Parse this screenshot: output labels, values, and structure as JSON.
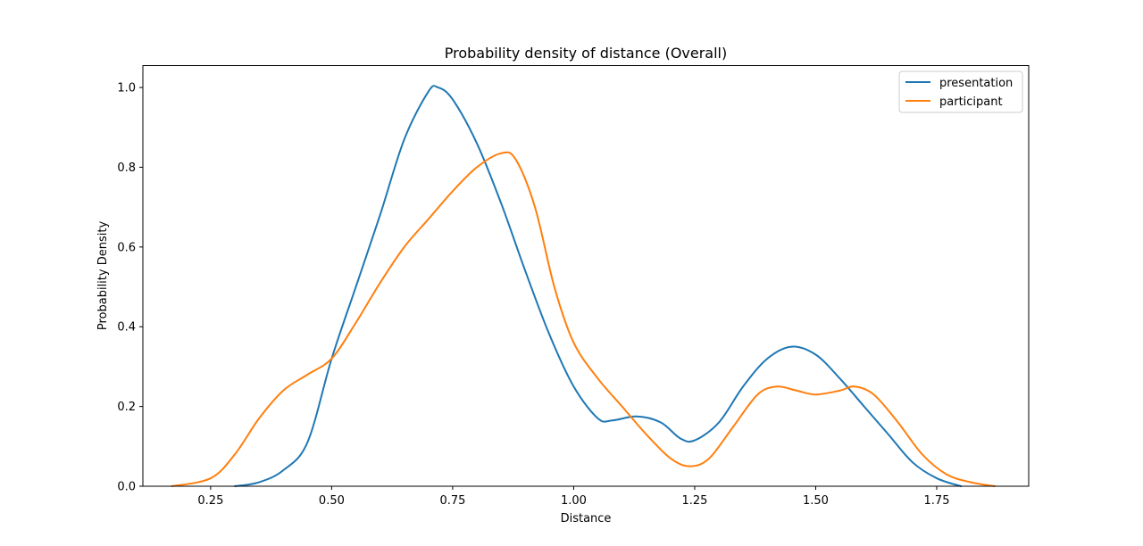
{
  "chart_data": {
    "type": "line",
    "title": "Probability density of distance (Overall)",
    "xlabel": "Distance",
    "ylabel": "Probability Density",
    "xlim": [
      0.11,
      1.94
    ],
    "ylim": [
      0.0,
      1.055
    ],
    "xticks": [
      "0.25",
      "0.50",
      "0.75",
      "1.00",
      "1.25",
      "1.50",
      "1.75"
    ],
    "yticks": [
      "0.0",
      "0.2",
      "0.4",
      "0.6",
      "0.8",
      "1.0"
    ],
    "grid": false,
    "legend_position": "top-right",
    "series": [
      {
        "name": "presentation",
        "color": "#1f77b4",
        "points": [
          [
            0.3,
            0.0
          ],
          [
            0.35,
            0.01
          ],
          [
            0.4,
            0.04
          ],
          [
            0.45,
            0.11
          ],
          [
            0.5,
            0.32
          ],
          [
            0.55,
            0.5
          ],
          [
            0.6,
            0.68
          ],
          [
            0.65,
            0.87
          ],
          [
            0.7,
            0.99
          ],
          [
            0.72,
            1.0
          ],
          [
            0.75,
            0.97
          ],
          [
            0.8,
            0.86
          ],
          [
            0.85,
            0.71
          ],
          [
            0.9,
            0.54
          ],
          [
            0.95,
            0.38
          ],
          [
            1.0,
            0.25
          ],
          [
            1.05,
            0.17
          ],
          [
            1.08,
            0.165
          ],
          [
            1.13,
            0.175
          ],
          [
            1.18,
            0.16
          ],
          [
            1.22,
            0.12
          ],
          [
            1.25,
            0.115
          ],
          [
            1.3,
            0.16
          ],
          [
            1.35,
            0.25
          ],
          [
            1.4,
            0.32
          ],
          [
            1.45,
            0.35
          ],
          [
            1.5,
            0.33
          ],
          [
            1.55,
            0.27
          ],
          [
            1.6,
            0.2
          ],
          [
            1.65,
            0.13
          ],
          [
            1.7,
            0.06
          ],
          [
            1.75,
            0.02
          ],
          [
            1.8,
            0.0
          ]
        ]
      },
      {
        "name": "participant",
        "color": "#ff7f0e",
        "points": [
          [
            0.17,
            0.0
          ],
          [
            0.25,
            0.02
          ],
          [
            0.3,
            0.08
          ],
          [
            0.35,
            0.17
          ],
          [
            0.4,
            0.24
          ],
          [
            0.45,
            0.28
          ],
          [
            0.5,
            0.32
          ],
          [
            0.55,
            0.41
          ],
          [
            0.6,
            0.51
          ],
          [
            0.65,
            0.6
          ],
          [
            0.7,
            0.67
          ],
          [
            0.75,
            0.74
          ],
          [
            0.8,
            0.8
          ],
          [
            0.85,
            0.835
          ],
          [
            0.88,
            0.82
          ],
          [
            0.92,
            0.7
          ],
          [
            0.96,
            0.5
          ],
          [
            1.0,
            0.36
          ],
          [
            1.05,
            0.27
          ],
          [
            1.1,
            0.2
          ],
          [
            1.15,
            0.13
          ],
          [
            1.2,
            0.07
          ],
          [
            1.24,
            0.05
          ],
          [
            1.28,
            0.07
          ],
          [
            1.33,
            0.15
          ],
          [
            1.38,
            0.23
          ],
          [
            1.42,
            0.25
          ],
          [
            1.46,
            0.24
          ],
          [
            1.5,
            0.23
          ],
          [
            1.55,
            0.24
          ],
          [
            1.58,
            0.25
          ],
          [
            1.62,
            0.23
          ],
          [
            1.67,
            0.16
          ],
          [
            1.72,
            0.08
          ],
          [
            1.77,
            0.03
          ],
          [
            1.82,
            0.01
          ],
          [
            1.87,
            0.0
          ]
        ]
      }
    ]
  }
}
